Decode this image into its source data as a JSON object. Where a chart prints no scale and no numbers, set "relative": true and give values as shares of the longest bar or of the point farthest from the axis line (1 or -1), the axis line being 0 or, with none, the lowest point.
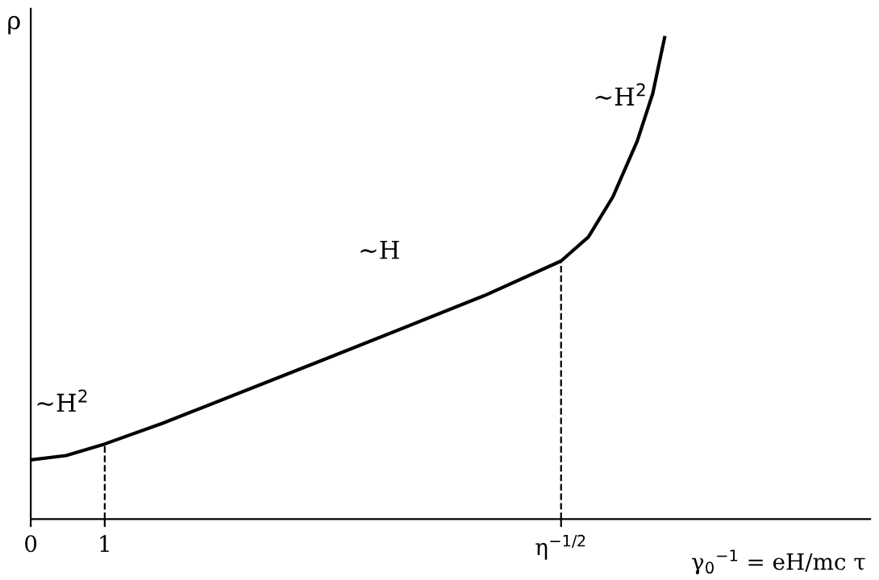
{
  "chart_data": {
    "type": "line",
    "relative": true,
    "xlabel": "γ$_{0}$$^{−1}$ = eH/mc τ",
    "ylabel": "ρ",
    "x": [
      0,
      0.478,
      1,
      1.78,
      3.96,
      6.13,
      7.17,
      7.54,
      7.87,
      8.2,
      8.41,
      8.57
    ],
    "series": [
      {
        "color": "#000000",
        "values": [
          0.123,
          0.132,
          0.156,
          0.199,
          0.331,
          0.464,
          0.536,
          0.586,
          0.669,
          0.785,
          0.884,
          1.0
        ]
      }
    ],
    "xlim": [
      0,
      11.35
    ],
    "xticks": [
      {
        "value": 0,
        "label": "0"
      },
      {
        "value": 1,
        "label": "1"
      },
      {
        "value": 7.17,
        "label": "η$^{−1/2}$"
      }
    ],
    "ref_lines": [
      {
        "axis": "x",
        "value": 1,
        "line_style": "dashed",
        "color": "#000000"
      },
      {
        "axis": "x",
        "value": 7.17,
        "line_style": "dashed",
        "color": "#000000"
      }
    ],
    "annotations": [
      "~H$^{2}$",
      "~H",
      "~H$^{2}$"
    ],
    "grid": false,
    "legend": false,
    "marker": "none",
    "line_style": "solid"
  }
}
